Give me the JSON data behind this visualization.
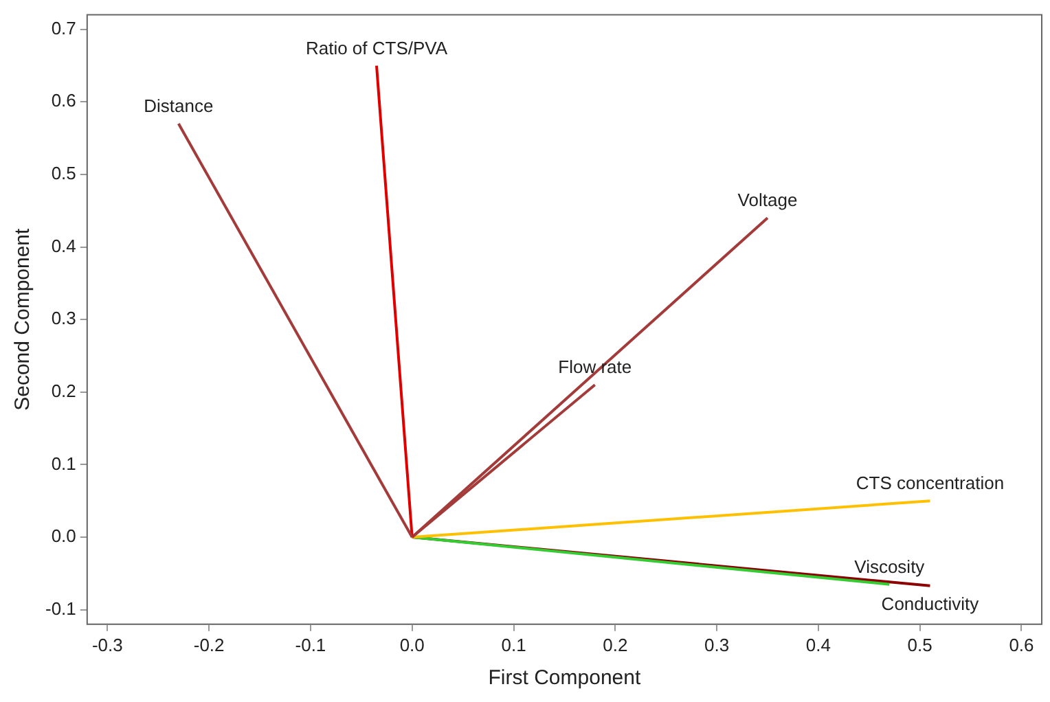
{
  "chart_data": {
    "type": "line",
    "xlabel": "First Component",
    "ylabel": "Second Component",
    "xlim": [
      -0.32,
      0.62
    ],
    "ylim": [
      -0.12,
      0.72
    ],
    "xticks": [
      -0.3,
      -0.2,
      -0.1,
      {
        "value": 0,
        "label": "0.0"
      },
      0.1,
      0.2,
      0.3,
      0.4,
      0.5,
      0.6
    ],
    "yticks": [
      -0.1,
      {
        "value": 0,
        "label": "0.0"
      },
      0.1,
      0.2,
      0.3,
      0.4,
      0.5,
      0.6,
      0.7
    ],
    "grid": false,
    "legend": false,
    "marker": "none",
    "line_style": "solid",
    "series": [
      {
        "name": "Distance",
        "color": "#a33b3b",
        "x": [
          0,
          -0.23
        ],
        "values": [
          0,
          0.57
        ]
      },
      {
        "name": "Ratio of CTS/PVA",
        "color": "#e00000",
        "x": [
          0,
          -0.035
        ],
        "values": [
          0,
          0.65
        ]
      },
      {
        "name": "Voltage",
        "color": "#a33b3b",
        "x": [
          0,
          0.35
        ],
        "values": [
          0,
          0.44
        ]
      },
      {
        "name": "Flow rate",
        "color": "#a33b3b",
        "x": [
          0,
          0.18
        ],
        "values": [
          0,
          0.21
        ]
      },
      {
        "name": "CTS concentration",
        "color": "#ffc000",
        "x": [
          0,
          0.51
        ],
        "values": [
          0,
          0.05
        ]
      },
      {
        "name": "Viscosity",
        "color": "#33cc33",
        "x": [
          0,
          0.47
        ],
        "values": [
          0,
          -0.065
        ]
      },
      {
        "name": "Conductivity",
        "color": "#8b0000",
        "x": [
          0,
          0.51
        ],
        "values": [
          0,
          -0.067
        ]
      }
    ]
  }
}
